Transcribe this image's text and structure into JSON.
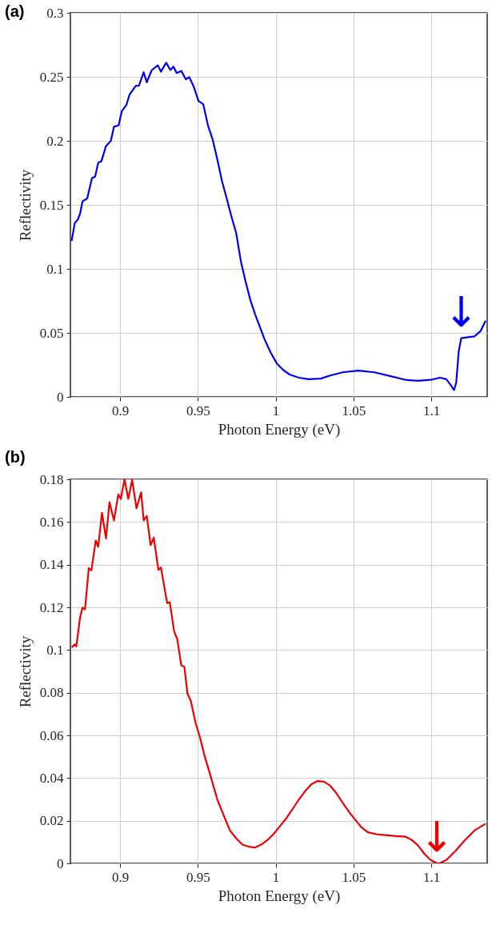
{
  "chart_data": [
    {
      "type": "line",
      "title": "(a)",
      "xlabel": "Photon Energy (eV)",
      "ylabel": "Reflectivity",
      "xlim": [
        0.868,
        1.136
      ],
      "ylim": [
        0,
        0.3
      ],
      "xticks": [
        0.9,
        0.95,
        1,
        1.05,
        1.1
      ],
      "yticks": [
        0,
        0.05,
        0.1,
        0.15,
        0.2,
        0.25,
        0.3
      ],
      "grid": true,
      "x": [
        0.8688,
        0.8708,
        0.8728,
        0.8742,
        0.8758,
        0.8788,
        0.8819,
        0.8839,
        0.8859,
        0.8879,
        0.8909,
        0.894,
        0.896,
        0.899,
        0.901,
        0.904,
        0.906,
        0.9101,
        0.9121,
        0.9151,
        0.9171,
        0.9202,
        0.9242,
        0.9262,
        0.9296,
        0.9323,
        0.9343,
        0.9363,
        0.9393,
        0.9423,
        0.9444,
        0.9474,
        0.9504,
        0.9534,
        0.9565,
        0.9595,
        0.9625,
        0.9655,
        0.9685,
        0.9716,
        0.9746,
        0.9776,
        0.9806,
        0.9837,
        0.9867,
        0.9897,
        0.9927,
        0.9968,
        1.0008,
        1.0048,
        1.0089,
        1.0149,
        1.021,
        1.029,
        1.0351,
        1.0431,
        1.0532,
        1.0633,
        1.0734,
        1.0835,
        1.0915,
        1.0996,
        1.1056,
        1.1097,
        1.1127,
        1.1147,
        1.1161,
        1.1177,
        1.1193,
        1.1238,
        1.1278,
        1.1318,
        1.135
      ],
      "series": [
        {
          "color": "#0000ee",
          "values": [
            0.1218,
            0.1357,
            0.1386,
            0.143,
            0.1527,
            0.155,
            0.171,
            0.172,
            0.183,
            0.184,
            0.196,
            0.2,
            0.211,
            0.212,
            0.223,
            0.228,
            0.236,
            0.243,
            0.243,
            0.2536,
            0.2457,
            0.255,
            0.259,
            0.254,
            0.261,
            0.2553,
            0.258,
            0.253,
            0.2546,
            0.248,
            0.2498,
            0.242,
            0.231,
            0.2287,
            0.2118,
            0.201,
            0.1853,
            0.1684,
            0.155,
            0.1406,
            0.128,
            0.106,
            0.0903,
            0.0757,
            0.0648,
            0.0551,
            0.0454,
            0.0345,
            0.026,
            0.0211,
            0.0175,
            0.015,
            0.0138,
            0.0143,
            0.0167,
            0.0192,
            0.0206,
            0.0192,
            0.0163,
            0.0133,
            0.0126,
            0.0133,
            0.015,
            0.0138,
            0.009,
            0.0053,
            0.0114,
            0.0357,
            0.0459,
            0.0466,
            0.0473,
            0.0515,
            0.0595
          ]
        }
      ],
      "annotations": [
        {
          "text": "↓",
          "x": 1.1193,
          "y": 0.0459
        }
      ]
    },
    {
      "type": "line",
      "title": "(b)",
      "xlabel": "Photon Energy (eV)",
      "ylabel": "Reflectivity",
      "xlim": [
        0.868,
        1.136
      ],
      "ylim": [
        0,
        0.18
      ],
      "xticks": [
        0.9,
        0.95,
        1,
        1.05,
        1.1
      ],
      "yticks": [
        0,
        0.02,
        0.04,
        0.06,
        0.08,
        0.1,
        0.12,
        0.14,
        0.16,
        0.18
      ],
      "grid": true,
      "x": [
        0.8688,
        0.8708,
        0.8718,
        0.8742,
        0.8758,
        0.8774,
        0.8798,
        0.8815,
        0.8843,
        0.8859,
        0.8883,
        0.8909,
        0.8931,
        0.896,
        0.8988,
        0.9004,
        0.9028,
        0.9052,
        0.9077,
        0.9105,
        0.9135,
        0.9151,
        0.9171,
        0.9196,
        0.9216,
        0.9246,
        0.9262,
        0.9302,
        0.9319,
        0.9347,
        0.9367,
        0.9393,
        0.9413,
        0.9433,
        0.9454,
        0.9484,
        0.9514,
        0.9544,
        0.9585,
        0.9625,
        0.9665,
        0.9706,
        0.9746,
        0.9786,
        0.9827,
        0.9867,
        0.9907,
        0.9948,
        0.9988,
        1.0028,
        1.0069,
        1.0109,
        1.0149,
        1.019,
        1.023,
        1.027,
        1.031,
        1.0351,
        1.0391,
        1.0431,
        1.0472,
        1.0512,
        1.0552,
        1.0593,
        1.0653,
        1.0714,
        1.0774,
        1.0835,
        1.0875,
        1.0915,
        1.0956,
        1.0996,
        1.1036,
        1.1056,
        1.1097,
        1.1157,
        1.1218,
        1.1278,
        1.135
      ],
      "series": [
        {
          "color": "#ee0000",
          "values": [
            0.1012,
            0.1026,
            0.1017,
            0.1152,
            0.1199,
            0.119,
            0.1383,
            0.1373,
            0.1513,
            0.1484,
            0.1643,
            0.1523,
            0.1693,
            0.1607,
            0.1729,
            0.1708,
            0.18,
            0.1708,
            0.1797,
            0.1664,
            0.1739,
            0.1607,
            0.1628,
            0.1491,
            0.1527,
            0.1375,
            0.1387,
            0.122,
            0.1224,
            0.1087,
            0.1051,
            0.0928,
            0.0921,
            0.0795,
            0.0762,
            0.0661,
            0.0588,
            0.0501,
            0.04,
            0.0299,
            0.0226,
            0.0154,
            0.0117,
            0.0088,
            0.0078,
            0.0074,
            0.0088,
            0.011,
            0.0139,
            0.0175,
            0.0212,
            0.0255,
            0.0299,
            0.0339,
            0.0371,
            0.0386,
            0.0383,
            0.0364,
            0.0328,
            0.0284,
            0.0241,
            0.0204,
            0.0168,
            0.0146,
            0.0136,
            0.0132,
            0.0128,
            0.0125,
            0.011,
            0.0084,
            0.0045,
            0.0016,
            0.0001,
            0.0001,
            0.0016,
            0.0059,
            0.011,
            0.0154,
            0.0186
          ]
        }
      ],
      "annotations": [
        {
          "text": "↓",
          "x": 1.1036,
          "y": 0.0001
        }
      ]
    }
  ]
}
